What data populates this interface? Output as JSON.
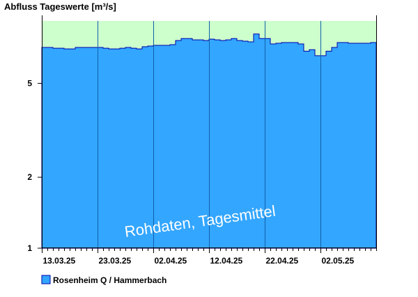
{
  "chart_data": {
    "type": "area",
    "title": "Abfluss Tageswerte [m³/s]",
    "y_scale": "log",
    "ylim": [
      1,
      9.2
    ],
    "y_ticks": [
      {
        "value": 1,
        "label": "1"
      },
      {
        "value": 2,
        "label": "2"
      },
      {
        "value": 5,
        "label": "5"
      }
    ],
    "x_ticks": [
      "13.03.25",
      "23.03.25",
      "02.04.25",
      "12.04.25",
      "22.04.25",
      "02.05.25"
    ],
    "legend_position": "bottom-left",
    "series": [
      {
        "name": "Rosenheim Q / Hammerbach",
        "color": "#33a6ff",
        "step": true,
        "x": [
          "13.03.25",
          "14.03.25",
          "15.03.25",
          "16.03.25",
          "17.03.25",
          "18.03.25",
          "19.03.25",
          "20.03.25",
          "21.03.25",
          "22.03.25",
          "23.03.25",
          "24.03.25",
          "25.03.25",
          "26.03.25",
          "27.03.25",
          "28.03.25",
          "29.03.25",
          "30.03.25",
          "31.03.25",
          "01.04.25",
          "02.04.25",
          "03.04.25",
          "04.04.25",
          "05.04.25",
          "06.04.25",
          "07.04.25",
          "08.04.25",
          "09.04.25",
          "10.04.25",
          "11.04.25",
          "12.04.25",
          "13.04.25",
          "14.04.25",
          "15.04.25",
          "16.04.25",
          "17.04.25",
          "18.04.25",
          "19.04.25",
          "20.04.25",
          "21.04.25",
          "22.04.25",
          "23.04.25",
          "24.04.25",
          "25.04.25",
          "26.04.25",
          "27.04.25",
          "28.04.25",
          "29.04.25",
          "30.04.25",
          "01.05.25",
          "02.05.25",
          "03.05.25",
          "04.05.25",
          "05.05.25",
          "06.05.25",
          "07.05.25",
          "08.05.25",
          "09.05.25",
          "10.05.25",
          "11.05.25"
        ],
        "values": [
          7.1,
          7.1,
          7.05,
          7.05,
          7.0,
          7.0,
          7.1,
          7.1,
          7.1,
          7.1,
          7.1,
          7.05,
          7.0,
          7.0,
          7.05,
          7.1,
          7.05,
          7.0,
          7.15,
          7.2,
          7.25,
          7.25,
          7.25,
          7.3,
          7.6,
          7.75,
          7.75,
          7.65,
          7.65,
          7.6,
          7.7,
          7.65,
          7.6,
          7.65,
          7.75,
          7.6,
          7.55,
          7.5,
          8.1,
          7.75,
          7.75,
          7.35,
          7.4,
          7.45,
          7.45,
          7.45,
          7.35,
          6.85,
          6.95,
          6.55,
          6.55,
          6.85,
          7.1,
          7.45,
          7.45,
          7.4,
          7.4,
          7.4,
          7.4,
          7.45
        ]
      }
    ],
    "annotations": [
      "Rohdaten, Tagesmittel"
    ]
  }
}
